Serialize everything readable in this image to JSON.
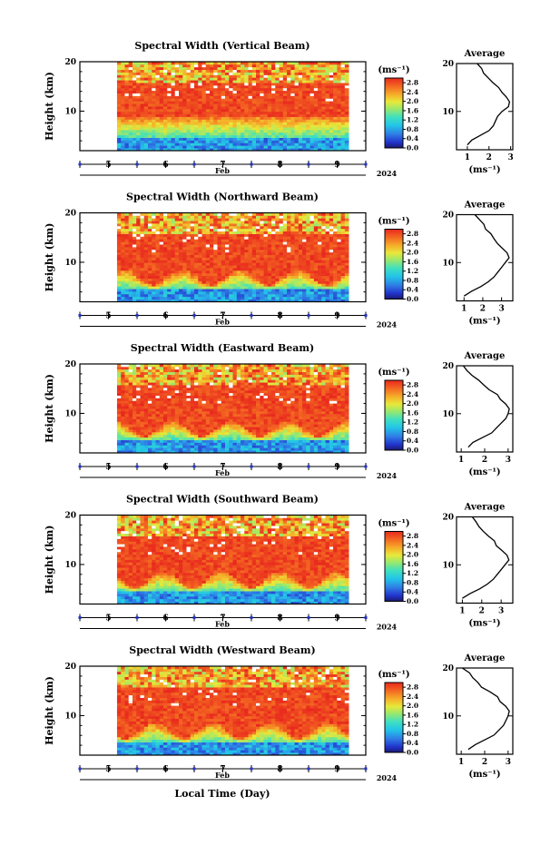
{
  "figure": {
    "xlabel": "Local Time (Day)",
    "month_label": "Feb",
    "year_label": "2024",
    "xticks": [
      "5",
      "6",
      "7",
      "8",
      "9"
    ],
    "ylabel": "Height (km)",
    "colorbar_unit": "(ms⁻¹)",
    "avg_title": "Average",
    "avg_xlabel": "(ms⁻¹)"
  },
  "chart_data": [
    {
      "type": "heatmap",
      "title": "Spectral Width (Vertical Beam)",
      "ylabel": "Height (km)",
      "yticks": [
        "10",
        "20"
      ],
      "ylim": [
        2,
        20
      ],
      "xlabel": "Feb",
      "xticks": [
        "5",
        "6",
        "7",
        "8",
        "9"
      ],
      "xlim": [
        4.5,
        9.5
      ],
      "colorbar": {
        "unit": "(ms⁻¹)",
        "ticks": [
          "0.0",
          "0.4",
          "0.8",
          "1.2",
          "1.6",
          "2.0",
          "2.4",
          "2.8"
        ],
        "range": [
          0,
          3.0
        ]
      },
      "description_pattern": "high spectral width (red) between ~8-16 km, low (blue) below ~5 km",
      "data_start_day": 5.15,
      "data_end_day": 9.2
    },
    {
      "type": "line",
      "title": "Average",
      "xlabel": "(ms⁻¹)",
      "xticks": [
        "1",
        "2",
        "3"
      ],
      "xlim": [
        0.5,
        3.1
      ],
      "ylabel": "",
      "yticks": [
        "10",
        "20"
      ],
      "ylim": [
        2,
        20
      ],
      "series": [
        {
          "points": [
            [
              1.0,
              3.0
            ],
            [
              1.2,
              4.0
            ],
            [
              1.6,
              5.0
            ],
            [
              2.0,
              6.0
            ],
            [
              2.2,
              7.0
            ],
            [
              2.3,
              8.0
            ],
            [
              2.4,
              9.0
            ],
            [
              2.6,
              10.0
            ],
            [
              2.9,
              11.0
            ],
            [
              2.95,
              12.0
            ],
            [
              2.8,
              13.0
            ],
            [
              2.6,
              14.0
            ],
            [
              2.4,
              15.0
            ],
            [
              2.2,
              16.0
            ],
            [
              2.0,
              17.0
            ],
            [
              1.8,
              18.0
            ],
            [
              1.6,
              19.0
            ],
            [
              1.5,
              20.0
            ]
          ]
        }
      ]
    },
    {
      "type": "heatmap",
      "title": "Spectral Width (Northward Beam)",
      "ylabel": "Height (km)",
      "yticks": [
        "10",
        "20"
      ],
      "ylim": [
        2,
        20
      ],
      "xlabel": "Feb",
      "xticks": [
        "5",
        "6",
        "7",
        "8",
        "9"
      ],
      "xlim": [
        4.5,
        9.5
      ],
      "colorbar": {
        "unit": "(ms⁻¹)",
        "ticks": [
          "0.0",
          "0.4",
          "0.8",
          "1.2",
          "1.6",
          "2.0",
          "2.4",
          "2.8"
        ],
        "range": [
          0,
          3.0
        ]
      },
      "data_start_day": 5.15,
      "data_end_day": 9.2
    },
    {
      "type": "line",
      "title": "Average",
      "xlabel": "(ms⁻¹)",
      "xticks": [
        "1",
        "2",
        "3"
      ],
      "xlim": [
        0.6,
        3.6
      ],
      "ylabel": "",
      "yticks": [
        "10",
        "20"
      ],
      "ylim": [
        2,
        20
      ],
      "series": [
        {
          "points": [
            [
              1.0,
              3.0
            ],
            [
              1.4,
              4.0
            ],
            [
              1.9,
              5.0
            ],
            [
              2.3,
              6.0
            ],
            [
              2.6,
              7.0
            ],
            [
              2.8,
              8.0
            ],
            [
              3.0,
              9.0
            ],
            [
              3.2,
              10.0
            ],
            [
              3.4,
              11.0
            ],
            [
              3.3,
              12.0
            ],
            [
              3.0,
              13.0
            ],
            [
              2.8,
              14.0
            ],
            [
              2.6,
              15.0
            ],
            [
              2.4,
              16.0
            ],
            [
              2.2,
              17.0
            ],
            [
              2.0,
              18.0
            ],
            [
              1.8,
              19.0
            ],
            [
              1.6,
              20.0
            ]
          ]
        }
      ]
    },
    {
      "type": "heatmap",
      "title": "Spectral Width (Eastward Beam)",
      "ylabel": "Height (km)",
      "yticks": [
        "10",
        "20"
      ],
      "ylim": [
        2,
        20
      ],
      "xlabel": "Feb",
      "xticks": [
        "5",
        "6",
        "7",
        "8",
        "9"
      ],
      "xlim": [
        4.5,
        9.5
      ],
      "colorbar": {
        "unit": "(ms⁻¹)",
        "ticks": [
          "0.0",
          "0.4",
          "0.8",
          "1.2",
          "1.6",
          "2.0",
          "2.4",
          "2.8"
        ],
        "range": [
          0,
          3.0
        ]
      },
      "data_start_day": 5.15,
      "data_end_day": 9.2
    },
    {
      "type": "line",
      "title": "Average",
      "xlabel": "(ms⁻¹)",
      "xticks": [
        "1",
        "2",
        "3"
      ],
      "xlim": [
        0.8,
        3.2
      ],
      "ylabel": "",
      "yticks": [
        "10",
        "20"
      ],
      "ylim": [
        2,
        20
      ],
      "series": [
        {
          "points": [
            [
              1.3,
              3.0
            ],
            [
              1.5,
              4.0
            ],
            [
              1.9,
              5.0
            ],
            [
              2.3,
              6.0
            ],
            [
              2.5,
              7.0
            ],
            [
              2.7,
              8.0
            ],
            [
              2.9,
              9.0
            ],
            [
              3.0,
              10.0
            ],
            [
              3.05,
              11.0
            ],
            [
              2.9,
              12.0
            ],
            [
              2.7,
              13.0
            ],
            [
              2.5,
              14.0
            ],
            [
              2.2,
              15.0
            ],
            [
              2.0,
              16.0
            ],
            [
              1.8,
              17.0
            ],
            [
              1.5,
              18.0
            ],
            [
              1.3,
              19.0
            ],
            [
              1.1,
              20.0
            ]
          ]
        }
      ]
    },
    {
      "type": "heatmap",
      "title": "Spectral Width (Southward Beam)",
      "ylabel": "Height (km)",
      "yticks": [
        "10",
        "20"
      ],
      "ylim": [
        2,
        20
      ],
      "xlabel": "Feb",
      "xticks": [
        "5",
        "6",
        "7",
        "8",
        "9"
      ],
      "xlim": [
        4.5,
        9.5
      ],
      "colorbar": {
        "unit": "(ms⁻¹)",
        "ticks": [
          "0.0",
          "0.4",
          "0.8",
          "1.2",
          "1.6",
          "2.0",
          "2.4",
          "2.8"
        ],
        "range": [
          0,
          3.0
        ]
      },
      "data_start_day": 5.15,
      "data_end_day": 9.2
    },
    {
      "type": "line",
      "title": "Average",
      "xlabel": "(ms⁻¹)",
      "xticks": [
        "1",
        "2",
        "3"
      ],
      "xlim": [
        0.7,
        3.6
      ],
      "ylabel": "",
      "yticks": [
        "10",
        "20"
      ],
      "ylim": [
        2,
        20
      ],
      "series": [
        {
          "points": [
            [
              1.0,
              3.0
            ],
            [
              1.4,
              4.0
            ],
            [
              1.9,
              5.0
            ],
            [
              2.3,
              6.0
            ],
            [
              2.6,
              7.0
            ],
            [
              2.8,
              8.0
            ],
            [
              3.0,
              9.0
            ],
            [
              3.2,
              10.0
            ],
            [
              3.4,
              11.0
            ],
            [
              3.3,
              12.0
            ],
            [
              3.0,
              13.0
            ],
            [
              2.8,
              14.0
            ],
            [
              2.6,
              15.0
            ],
            [
              2.3,
              16.0
            ],
            [
              2.1,
              17.0
            ],
            [
              1.9,
              18.0
            ],
            [
              1.7,
              19.0
            ],
            [
              1.5,
              20.0
            ]
          ]
        }
      ]
    },
    {
      "type": "heatmap",
      "title": "Spectral Width (Westward Beam)",
      "ylabel": "Height (km)",
      "yticks": [
        "10",
        "20"
      ],
      "ylim": [
        2,
        20
      ],
      "xlabel": "Feb",
      "xticks": [
        "5",
        "6",
        "7",
        "8",
        "9"
      ],
      "xlim": [
        4.5,
        9.5
      ],
      "colorbar": {
        "unit": "(ms⁻¹)",
        "ticks": [
          "0.0",
          "0.4",
          "0.8",
          "1.2",
          "1.6",
          "2.0",
          "2.4",
          "2.8"
        ],
        "range": [
          0,
          3.0
        ]
      },
      "data_start_day": 5.15,
      "data_end_day": 9.2
    },
    {
      "type": "line",
      "title": "Average",
      "xlabel": "(ms⁻¹)",
      "xticks": [
        "1",
        "2",
        "3"
      ],
      "xlim": [
        0.8,
        3.2
      ],
      "ylabel": "",
      "yticks": [
        "10",
        "20"
      ],
      "ylim": [
        2,
        20
      ],
      "series": [
        {
          "points": [
            [
              1.3,
              3.0
            ],
            [
              1.6,
              4.0
            ],
            [
              2.0,
              5.0
            ],
            [
              2.4,
              6.0
            ],
            [
              2.6,
              7.0
            ],
            [
              2.8,
              8.0
            ],
            [
              2.9,
              9.0
            ],
            [
              3.0,
              10.0
            ],
            [
              3.05,
              11.0
            ],
            [
              2.9,
              12.0
            ],
            [
              2.7,
              13.0
            ],
            [
              2.5,
              14.0
            ],
            [
              2.2,
              15.0
            ],
            [
              1.9,
              16.0
            ],
            [
              1.7,
              17.0
            ],
            [
              1.5,
              18.0
            ],
            [
              1.3,
              19.0
            ],
            [
              1.1,
              20.0
            ]
          ]
        }
      ]
    }
  ]
}
